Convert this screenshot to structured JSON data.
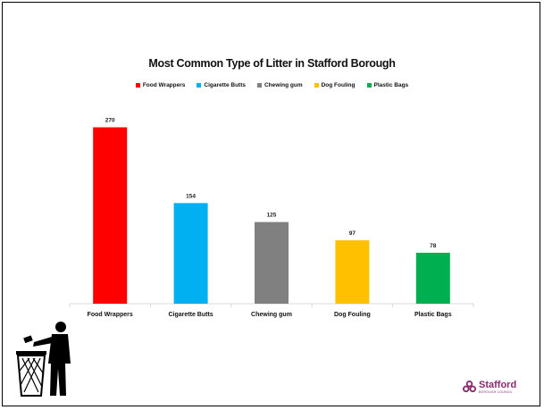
{
  "chart_data": {
    "type": "bar",
    "title": "Most Common Type of Litter in Stafford Borough",
    "categories": [
      "Food Wrappers",
      "Cigarette Butts",
      "Chewing gum",
      "Dog Fouling",
      "Plastic Bags"
    ],
    "values": [
      270,
      154,
      125,
      97,
      78
    ],
    "data_labels": [
      "270",
      "154",
      "125",
      "97",
      "78"
    ],
    "colors": [
      "#ff0000",
      "#00b0f0",
      "#808080",
      "#ffc000",
      "#00b050"
    ],
    "xlabel": "",
    "ylabel": "",
    "ylim": [
      0,
      350
    ],
    "grid": false,
    "legend": "top"
  },
  "logo": {
    "name": "Stafford",
    "subtitle": "BOROUGH COUNCIL",
    "color": "#8b2a6e"
  },
  "icons": {
    "person": "person-throwing-litter-icon",
    "bin": "waste-bin-icon"
  }
}
